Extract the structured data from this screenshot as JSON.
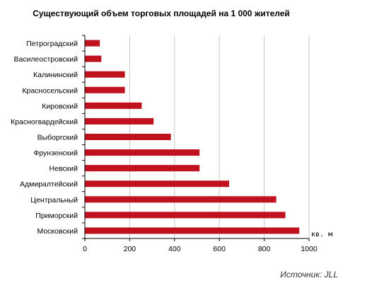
{
  "colors": {
    "bar": "#C0111F",
    "grid": "#C8C8C8",
    "axis": "#000000",
    "background": "#FFFFFF"
  },
  "chart_data": {
    "type": "bar",
    "orientation": "horizontal",
    "title": "Существующий объем торговых площадей на 1 000 жителей",
    "unit": "кв. м",
    "source": "Источник: JLL",
    "categories": [
      "Петроградский",
      "Василеостровский",
      "Калининский",
      "Красносельский",
      "Кировский",
      "Красногвардейский",
      "Выборгский",
      "Фрунзенский",
      "Невский",
      "Адмиралтейский",
      "Центральный",
      "Приморский",
      "Московский"
    ],
    "values": [
      65,
      72,
      177,
      177,
      252,
      305,
      382,
      510,
      510,
      642,
      852,
      893,
      955
    ],
    "xlim": [
      0,
      1000
    ],
    "xticks": [
      "0",
      "200",
      "400",
      "600",
      "800",
      "1000"
    ],
    "grid": true,
    "legend": "none"
  }
}
